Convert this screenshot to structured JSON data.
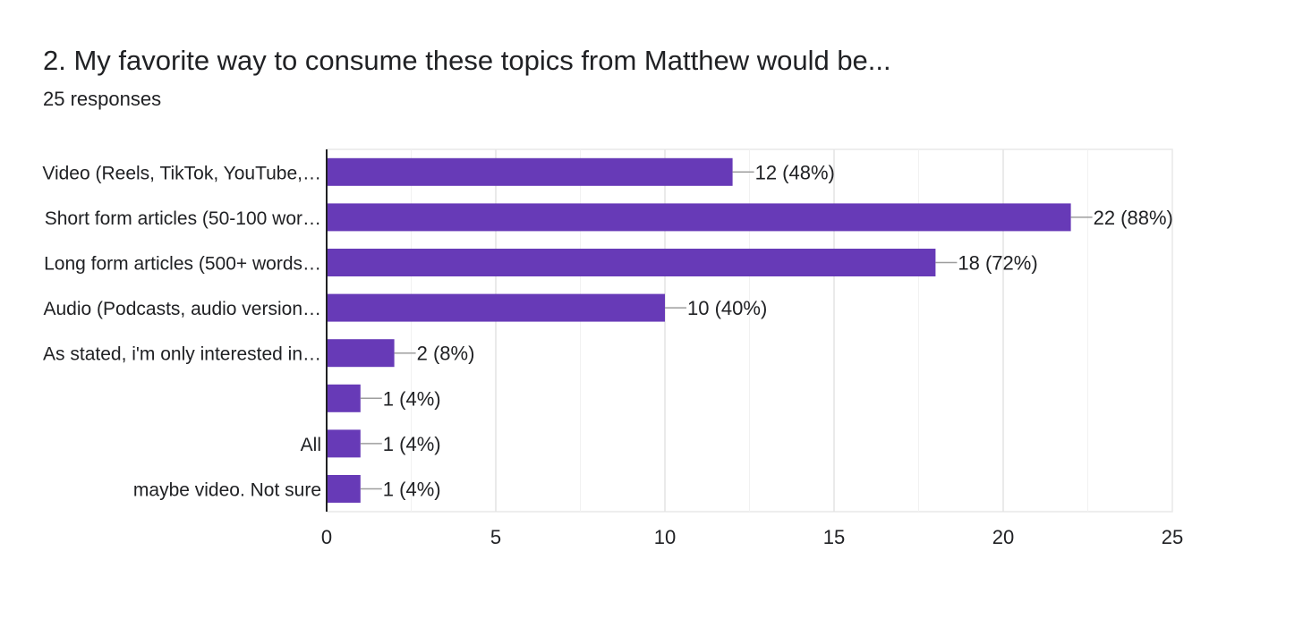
{
  "question": {
    "title": "2. My favorite way to consume these topics from Matthew would be...",
    "responses": "25 responses"
  },
  "colors": {
    "bar": "#673ab7",
    "grid": "#e8e8e8",
    "axis": "#202124",
    "leader": "#9e9e9e"
  },
  "chart_data": {
    "type": "bar",
    "orientation": "horizontal",
    "title": "2. My favorite way to consume these topics from Matthew would be...",
    "subtitle": "25 responses",
    "categories": [
      "Video (Reels, TikTok, YouTube,…",
      "Short form articles (50-100 wor…",
      "Long form articles (500+ words…",
      "Audio (Podcasts, audio version…",
      "As stated, i'm only interested in…",
      "",
      "All",
      "maybe video. Not sure"
    ],
    "values": [
      12,
      22,
      18,
      10,
      2,
      1,
      1,
      1
    ],
    "data_labels": [
      "12 (48%)",
      "22 (88%)",
      "18 (72%)",
      "10 (40%)",
      "2 (8%)",
      "1 (4%)",
      "1 (4%)",
      "1 (4%)"
    ],
    "xlim": [
      0,
      25
    ],
    "xticks": [
      0,
      5,
      10,
      15,
      20,
      25
    ],
    "xlabel": "",
    "ylabel": "",
    "grid": true
  }
}
